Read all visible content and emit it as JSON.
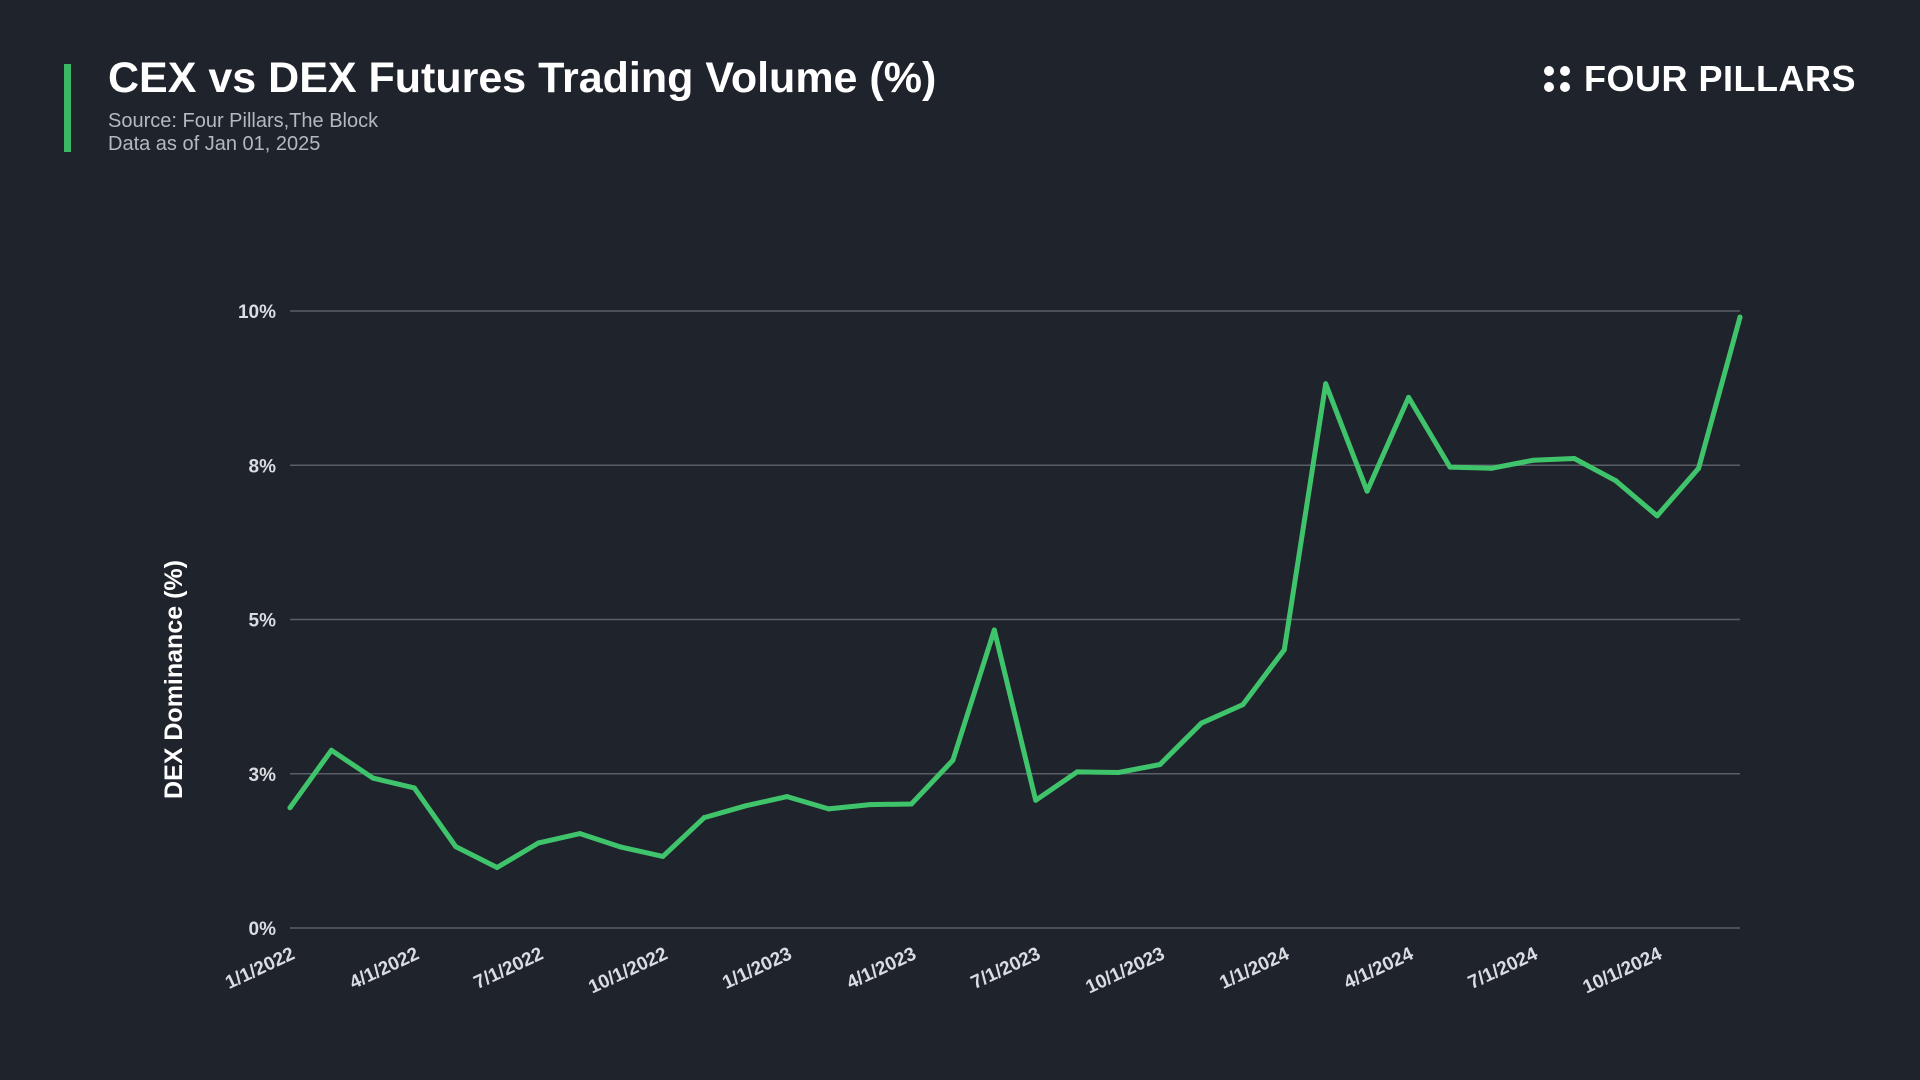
{
  "header": {
    "title": "CEX vs DEX Futures Trading Volume (%)",
    "source": "Source: Four Pillars,The Block",
    "as_of": "Data as of Jan 01, 2025"
  },
  "logo": {
    "text": "FOUR PILLARS",
    "icon": "four-dots-icon"
  },
  "colors": {
    "background": "#1f232b",
    "line": "#3fc46c",
    "accent": "#3bb865",
    "grid": "#5a5e66"
  },
  "chart_data": {
    "type": "line",
    "title": "CEX vs DEX Futures Trading Volume (%)",
    "ylabel": "DEX Dominance (%)",
    "ylim": [
      0,
      10
    ],
    "y_ticks": [
      {
        "value": 0,
        "label": "0%"
      },
      {
        "value": 2.5,
        "label": "3%"
      },
      {
        "value": 5,
        "label": "5%"
      },
      {
        "value": 7.5,
        "label": "8%"
      },
      {
        "value": 10,
        "label": "10%"
      }
    ],
    "x_tick_labels": [
      "1/1/2022",
      "4/1/2022",
      "7/1/2022",
      "10/1/2022",
      "1/1/2023",
      "4/1/2023",
      "7/1/2023",
      "10/1/2023",
      "1/1/2024",
      "4/1/2024",
      "7/1/2024",
      "10/1/2024"
    ],
    "grid": true,
    "x": [
      "2022-01",
      "2022-02",
      "2022-03",
      "2022-04",
      "2022-05",
      "2022-06",
      "2022-07",
      "2022-08",
      "2022-09",
      "2022-10",
      "2022-11",
      "2022-12",
      "2023-01",
      "2023-02",
      "2023-03",
      "2023-04",
      "2023-05",
      "2023-06",
      "2023-07",
      "2023-08",
      "2023-09",
      "2023-10",
      "2023-11",
      "2023-12",
      "2024-01",
      "2024-02",
      "2024-03",
      "2024-04",
      "2024-05",
      "2024-06",
      "2024-07",
      "2024-08",
      "2024-09",
      "2024-10",
      "2024-11",
      "2024-12"
    ],
    "series": [
      {
        "values": [
          1.95,
          2.88,
          2.43,
          2.27,
          1.32,
          0.98,
          1.38,
          1.53,
          1.31,
          1.16,
          1.79,
          1.98,
          2.13,
          1.93,
          2.0,
          2.01,
          2.72,
          4.83,
          2.07,
          2.53,
          2.52,
          2.65,
          3.32,
          3.62,
          4.51,
          8.82,
          7.08,
          8.6,
          7.47,
          7.45,
          7.58,
          7.61,
          7.25,
          6.68,
          7.45,
          9.9
        ]
      }
    ]
  }
}
